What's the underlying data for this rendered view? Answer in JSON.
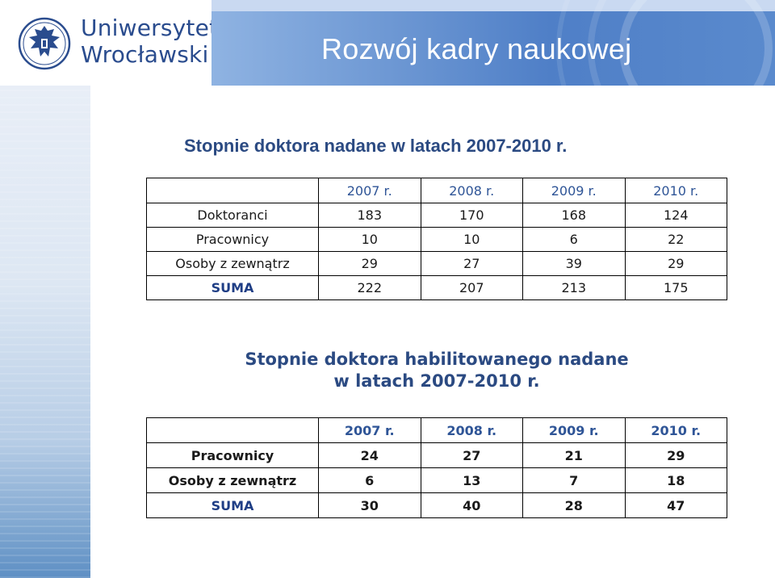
{
  "header": {
    "logo_line1": "Uniwersytet",
    "logo_line2": "Wrocławski",
    "title": "Rozwój kadry naukowej"
  },
  "section1": {
    "heading": "Stopnie doktora nadane w latach 2007-2010 r.",
    "columns": [
      "2007 r.",
      "2008 r.",
      "2009 r.",
      "2010 r."
    ],
    "rows": [
      {
        "label": "Doktoranci",
        "values": [
          "183",
          "170",
          "168",
          "124"
        ]
      },
      {
        "label": "Pracownicy",
        "values": [
          "10",
          "10",
          "6",
          "22"
        ]
      },
      {
        "label": "Osoby z zewnątrz",
        "values": [
          "29",
          "27",
          "39",
          "29"
        ]
      },
      {
        "label": "SUMA",
        "values": [
          "222",
          "207",
          "213",
          "175"
        ]
      }
    ]
  },
  "section2": {
    "heading_line1": "Stopnie doktora habilitowanego nadane",
    "heading_line2": "w latach 2007-2010 r.",
    "columns": [
      "2007 r.",
      "2008 r.",
      "2009 r.",
      "2010 r."
    ],
    "rows": [
      {
        "label": "Pracownicy",
        "values": [
          "24",
          "27",
          "21",
          "29"
        ]
      },
      {
        "label": "Osoby z zewnątrz",
        "values": [
          "6",
          "13",
          "7",
          "18"
        ]
      },
      {
        "label": "SUMA",
        "values": [
          "30",
          "40",
          "28",
          "47"
        ]
      }
    ]
  },
  "colors": {
    "brand_blue": "#2a4c8e",
    "heading_blue": "#2b4a82",
    "banner_blue": "#5a8acd"
  }
}
